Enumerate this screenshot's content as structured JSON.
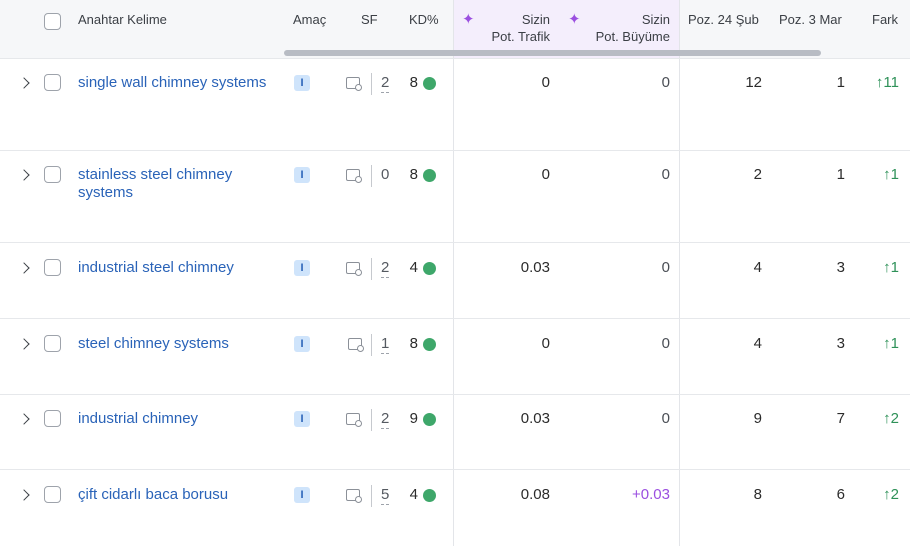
{
  "header": {
    "keyword": "Anahtar Kelime",
    "intent": "Amaç",
    "sf": "SF",
    "kd": "KD%",
    "traffic_line1": "Sizin",
    "traffic_line2": "Pot. Trafik",
    "growth_line1": "Sizin",
    "growth_line2": "Pot. Büyüme",
    "pos_prev": "Poz. 24 Şub",
    "pos_curr": "Poz. 3 Mar",
    "diff": "Fark"
  },
  "colors": {
    "accent_purple": "#9b4fe0",
    "link_blue": "#2a63b8",
    "kd_green": "#3ea76a",
    "delta_green": "#2e9158"
  },
  "rows": [
    {
      "keyword": "single wall chimney systems",
      "intent": "I",
      "sf": "2",
      "kd": "8",
      "traffic": "0",
      "growth": "0",
      "pos_prev": "12",
      "pos_curr": "1",
      "diff": "↑11"
    },
    {
      "keyword": "stainless steel chimney systems",
      "intent": "I",
      "sf": "0",
      "kd": "8",
      "traffic": "0",
      "growth": "0",
      "pos_prev": "2",
      "pos_curr": "1",
      "diff": "↑1"
    },
    {
      "keyword": "industrial steel chimney",
      "intent": "I",
      "sf": "2",
      "kd": "4",
      "traffic": "0.03",
      "growth": "0",
      "pos_prev": "4",
      "pos_curr": "3",
      "diff": "↑1"
    },
    {
      "keyword": "steel chimney systems",
      "intent": "I",
      "sf": "1",
      "kd": "8",
      "traffic": "0",
      "growth": "0",
      "pos_prev": "4",
      "pos_curr": "3",
      "diff": "↑1"
    },
    {
      "keyword": "industrial chimney",
      "intent": "I",
      "sf": "2",
      "kd": "9",
      "traffic": "0.03",
      "growth": "0",
      "pos_prev": "9",
      "pos_curr": "7",
      "diff": "↑2"
    },
    {
      "keyword": "çift cidarlı baca borusu",
      "intent": "I",
      "sf": "5",
      "kd": "4",
      "traffic": "0.08",
      "growth": "+0.03",
      "pos_prev": "8",
      "pos_curr": "6",
      "diff": "↑2"
    }
  ]
}
